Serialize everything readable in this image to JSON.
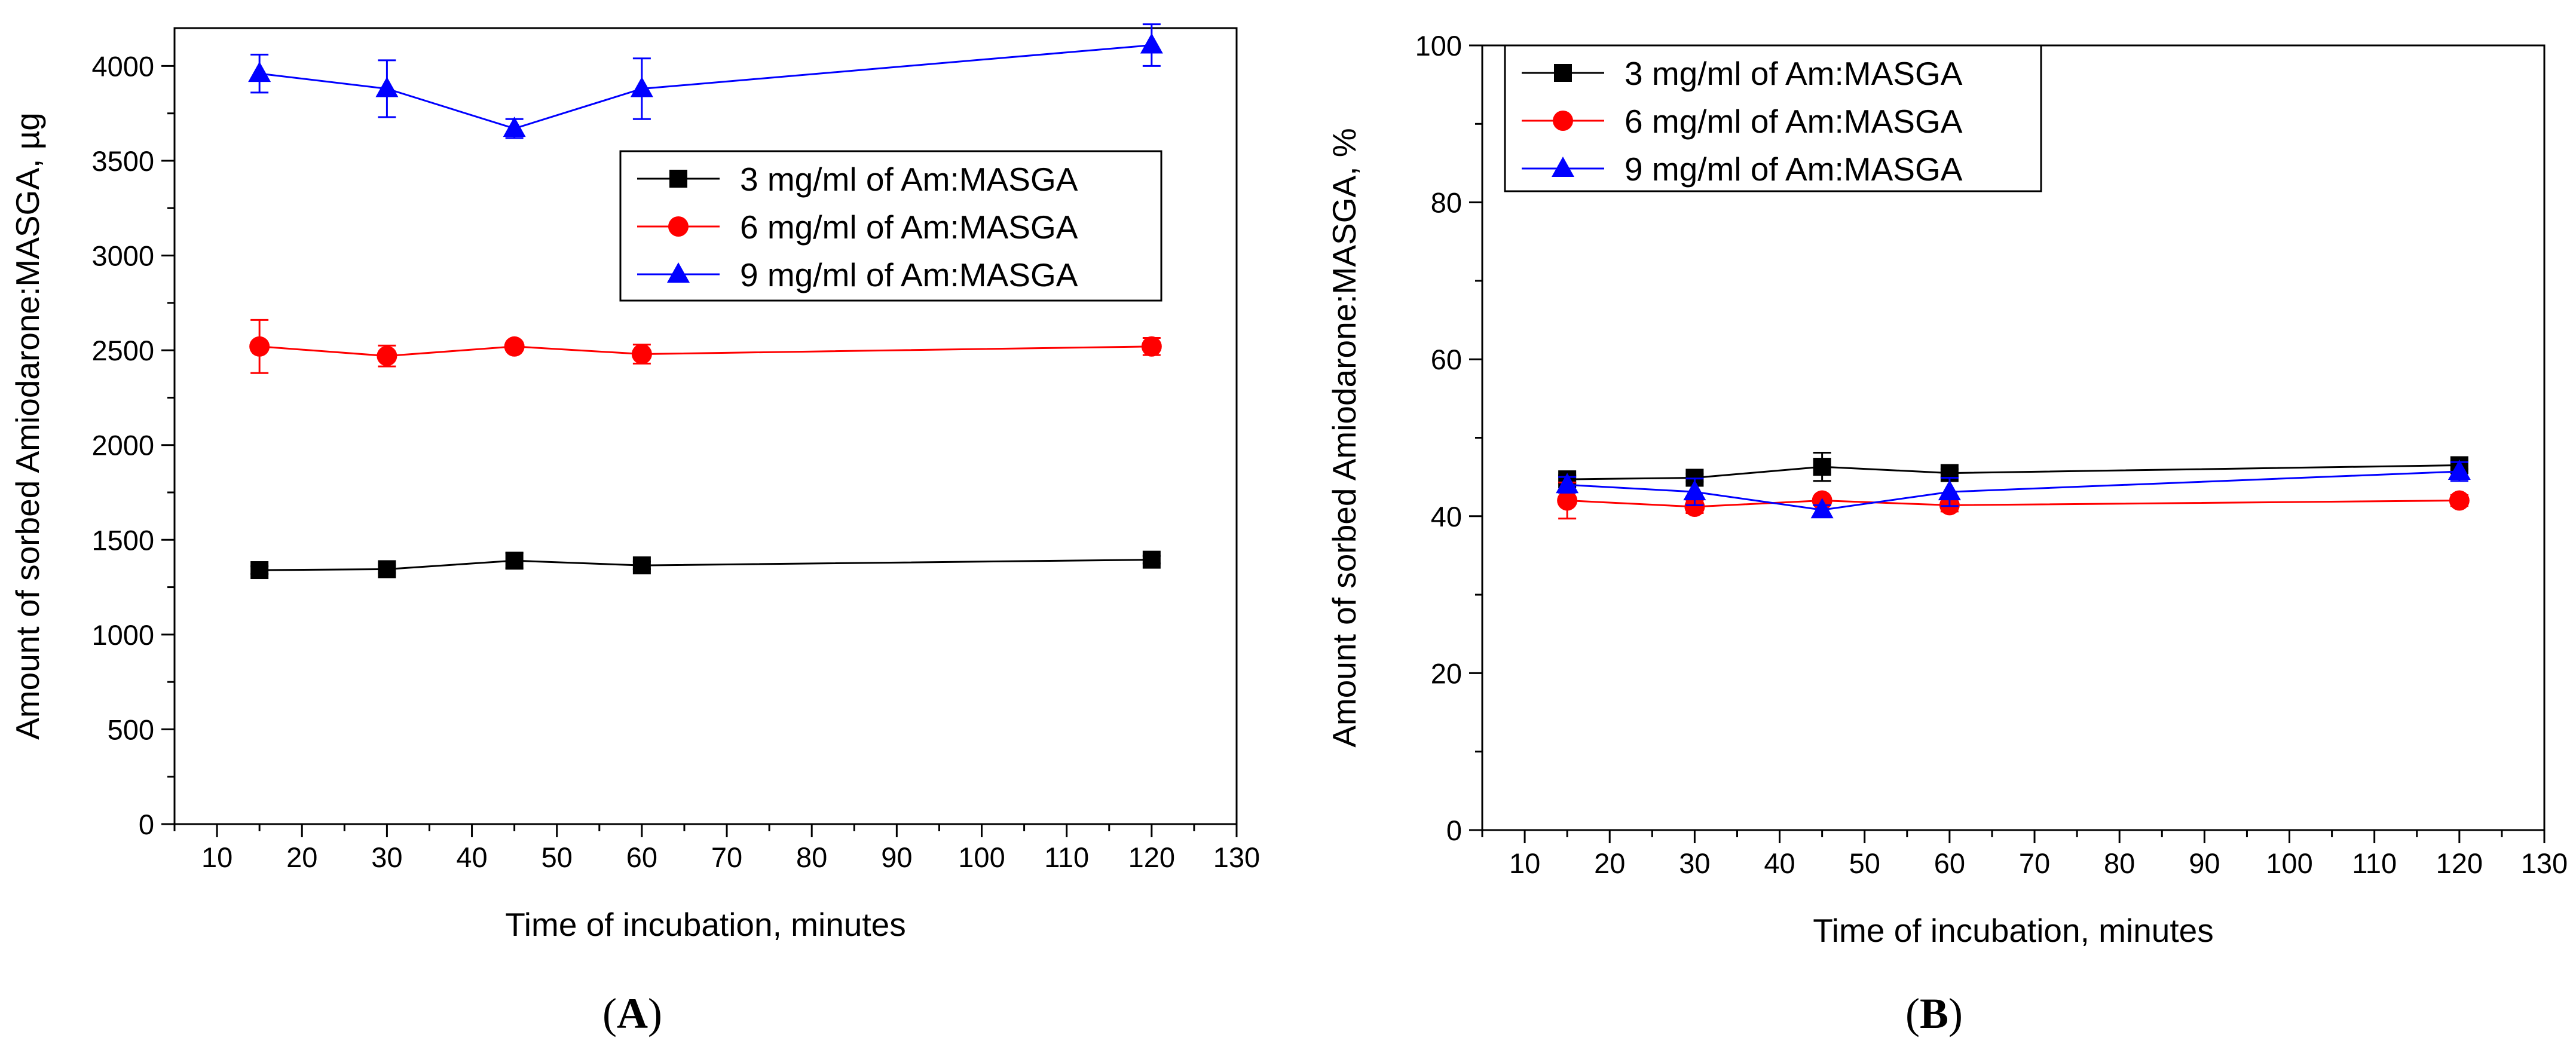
{
  "chart_data": [
    {
      "type": "line",
      "panel_label": "A",
      "title": "",
      "xlabel": "Time of incubation, minutes",
      "ylabel": "Amount of sorbed Amiodarone:MASGA, µg",
      "xlim": [
        5,
        130
      ],
      "ylim": [
        0,
        4200
      ],
      "xticks": [
        10,
        20,
        30,
        40,
        50,
        60,
        70,
        80,
        90,
        100,
        110,
        120,
        130
      ],
      "yticks": [
        0,
        500,
        1000,
        1500,
        2000,
        2500,
        3000,
        3500,
        4000
      ],
      "x": [
        15,
        30,
        45,
        60,
        120
      ],
      "legend_position": "upper-right",
      "series": [
        {
          "name": "3 mg/ml of Am:MASGA",
          "color": "#000000",
          "marker": "square",
          "values": [
            1340,
            1345,
            1390,
            1365,
            1395
          ],
          "errors": [
            20,
            20,
            40,
            20,
            20
          ]
        },
        {
          "name": "6 mg/ml of Am:MASGA",
          "color": "#ff0000",
          "marker": "circle",
          "values": [
            2520,
            2470,
            2520,
            2480,
            2520
          ],
          "errors": [
            140,
            55,
            20,
            50,
            45
          ]
        },
        {
          "name": "9 mg/ml of Am:MASGA",
          "color": "#0000ff",
          "marker": "triangle",
          "values": [
            3960,
            3880,
            3670,
            3880,
            4110
          ],
          "errors": [
            100,
            150,
            50,
            160,
            110
          ]
        }
      ]
    },
    {
      "type": "line",
      "panel_label": "B",
      "title": "",
      "xlabel": "Time of incubation, minutes",
      "ylabel": "Amount of sorbed Amiodarone:MASGA, %",
      "xlim": [
        5,
        130
      ],
      "ylim": [
        0,
        100
      ],
      "xticks": [
        10,
        20,
        30,
        40,
        50,
        60,
        70,
        80,
        90,
        100,
        110,
        120,
        130
      ],
      "yticks": [
        0,
        20,
        40,
        60,
        80,
        100
      ],
      "x": [
        15,
        30,
        45,
        60,
        120
      ],
      "legend_position": "upper-left",
      "series": [
        {
          "name": "3 mg/ml of Am:MASGA",
          "color": "#000000",
          "marker": "square",
          "values": [
            44.7,
            44.9,
            46.3,
            45.5,
            46.5
          ],
          "errors": [
            0.5,
            0.5,
            1.8,
            0.5,
            0.5
          ]
        },
        {
          "name": "6 mg/ml of Am:MASGA",
          "color": "#ff0000",
          "marker": "circle",
          "values": [
            42.0,
            41.2,
            42.0,
            41.4,
            42.0
          ],
          "errors": [
            2.3,
            0.8,
            0.4,
            0.8,
            0.7
          ]
        },
        {
          "name": "9 mg/ml of Am:MASGA",
          "color": "#0000ff",
          "marker": "triangle",
          "values": [
            44.0,
            43.1,
            40.8,
            43.1,
            45.7
          ],
          "errors": [
            1.0,
            1.7,
            0.6,
            1.8,
            1.2
          ]
        }
      ]
    }
  ]
}
